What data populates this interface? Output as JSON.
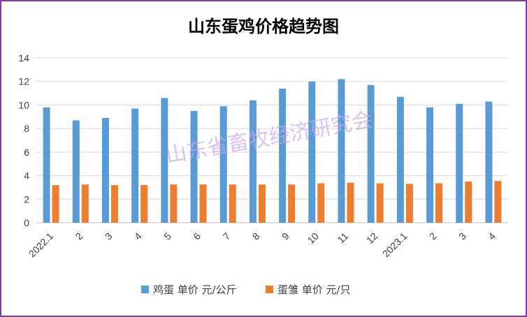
{
  "chart_data": {
    "type": "bar",
    "title": "山东蛋鸡价格趋势图",
    "categories": [
      "2022.1",
      "2",
      "3",
      "4",
      "5",
      "6",
      "7",
      "8",
      "9",
      "10",
      "11",
      "12",
      "2023.1",
      "2",
      "3",
      "4"
    ],
    "series": [
      {
        "name": "鸡蛋 单价 元/公斤",
        "color": "#5b9bd5",
        "values": [
          9.8,
          8.7,
          8.9,
          9.7,
          10.6,
          9.5,
          9.9,
          10.4,
          11.4,
          12.0,
          12.2,
          11.7,
          10.7,
          9.8,
          10.1,
          10.3
        ]
      },
      {
        "name": "蛋雏 单价 元/只",
        "color": "#ed7d31",
        "values": [
          3.2,
          3.25,
          3.2,
          3.2,
          3.25,
          3.25,
          3.25,
          3.25,
          3.25,
          3.35,
          3.4,
          3.35,
          3.3,
          3.35,
          3.5,
          3.55
        ]
      }
    ],
    "ylim": [
      0,
      14
    ],
    "yticks": [
      0,
      2,
      4,
      6,
      8,
      10,
      12,
      14
    ],
    "grid": true,
    "legend": "bottom",
    "watermark": "山东省畜牧经济研究会"
  }
}
